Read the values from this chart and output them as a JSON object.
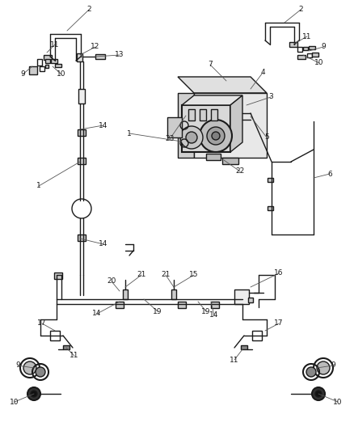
{
  "bg_color": "#ffffff",
  "lc": "#1a1a1a",
  "figsize": [
    4.38,
    5.33
  ],
  "dpi": 100,
  "lw": 1.0,
  "fs_label": 6.5
}
